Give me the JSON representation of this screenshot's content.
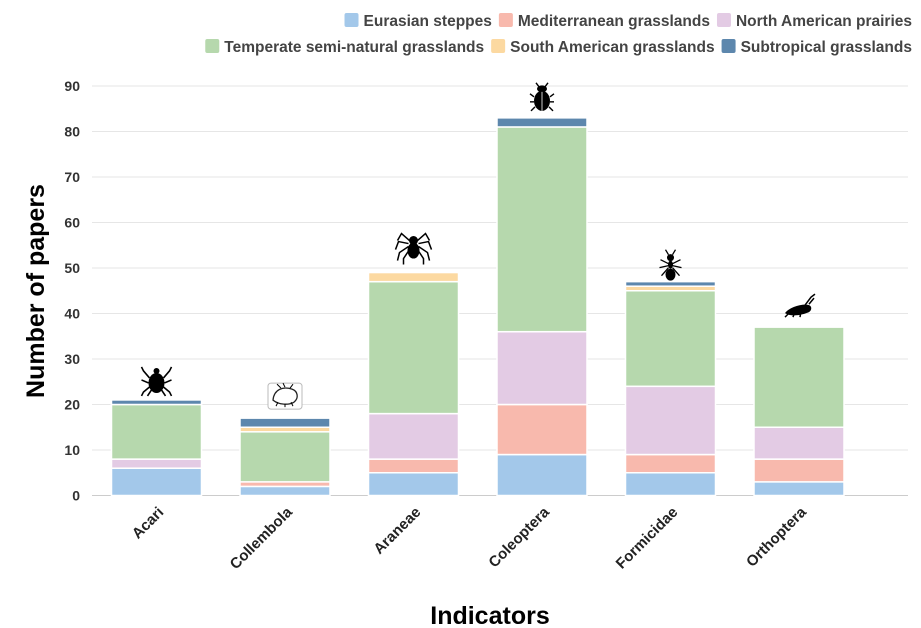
{
  "chart_data": {
    "type": "bar",
    "stacked": true,
    "categories": [
      "Acari",
      "Collembola",
      "Araneae",
      "Coleoptera",
      "Formicidae",
      "Orthoptera"
    ],
    "series": [
      {
        "name": "Eurasian steppes",
        "color": "#a3c8ea",
        "values": [
          6,
          2,
          5,
          9,
          5,
          3
        ]
      },
      {
        "name": "Mediterranean grasslands",
        "color": "#f8b9ad",
        "values": [
          0,
          1,
          3,
          11,
          4,
          5
        ]
      },
      {
        "name": "North American prairies",
        "color": "#e3cbe4",
        "values": [
          2,
          0,
          10,
          16,
          15,
          7
        ]
      },
      {
        "name": "Temperate semi-natural grasslands",
        "color": "#b6d8ad",
        "values": [
          12,
          11,
          29,
          45,
          21,
          22
        ]
      },
      {
        "name": "South American grasslands",
        "color": "#fcd9a1",
        "values": [
          0,
          1,
          2,
          0,
          1,
          0
        ]
      },
      {
        "name": "Subtropical grasslands",
        "color": "#5d87ad",
        "values": [
          1,
          2,
          0,
          2,
          1,
          0
        ]
      }
    ],
    "category_icons": [
      "mite-icon",
      "springtail-icon",
      "spider-icon",
      "beetle-icon",
      "ant-icon",
      "grasshopper-icon"
    ],
    "xlabel": "Indicators",
    "ylabel": "Number of papers",
    "ylim": [
      0,
      90
    ],
    "yticks": [
      0,
      10,
      20,
      30,
      40,
      50,
      60,
      70,
      80,
      90
    ],
    "grid": true,
    "legend_position": "top-right"
  }
}
